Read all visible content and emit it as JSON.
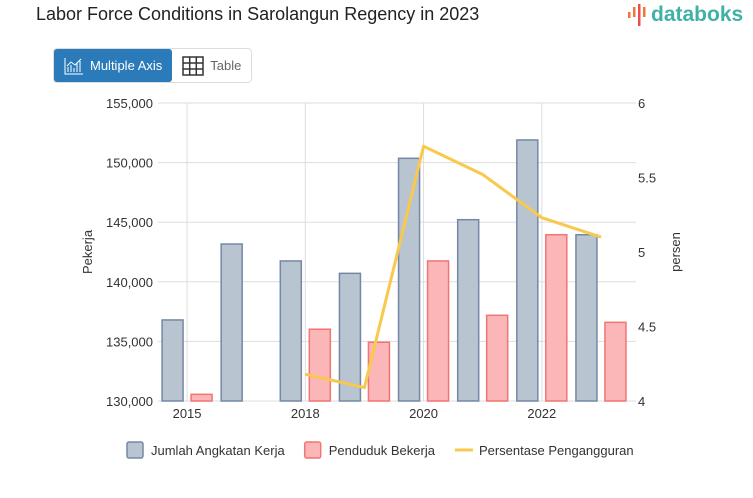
{
  "title": "Labor Force Conditions in Sarolangun Regency in 2023",
  "logo": "databoks",
  "tabs": [
    {
      "label": "Multiple Axis",
      "icon": "chart-icon",
      "active": true
    },
    {
      "label": "Table",
      "icon": "table-icon",
      "active": false
    }
  ],
  "chart_data": {
    "type": "bar",
    "categories": [
      "2015",
      "",
      "2018",
      "",
      "2020",
      "",
      "2022",
      ""
    ],
    "series": [
      {
        "name": "Jumlah Angkatan Kerja",
        "type": "bar",
        "axis": "left",
        "color": "#b8c4d0",
        "border": "#7488a6",
        "values": [
          136800,
          143170,
          141750,
          140710,
          150360,
          145210,
          151900,
          143950
        ]
      },
      {
        "name": "Penduduk Bekerja",
        "type": "bar",
        "axis": "left",
        "color": "#fbb7b7",
        "border": "#f27474",
        "values": [
          130560,
          null,
          136020,
          134930,
          141750,
          137190,
          143950,
          136600
        ]
      },
      {
        "name": "Persentase Pengangguran",
        "type": "line",
        "axis": "right",
        "color": "#f8c94c",
        "values": [
          null,
          null,
          4.18,
          4.09,
          5.71,
          5.52,
          5.23,
          5.1
        ]
      }
    ],
    "ylabel": "Pekerja",
    "y2label": "persen",
    "ylim": [
      130000,
      155000
    ],
    "yticks": [
      "130,000",
      "135,000",
      "140,000",
      "145,000",
      "150,000",
      "155,000"
    ],
    "y2lim": [
      4,
      6
    ],
    "y2ticks": [
      "4",
      "4.5",
      "5",
      "5.5",
      "6"
    ],
    "grid": true,
    "legend": "bottom"
  }
}
